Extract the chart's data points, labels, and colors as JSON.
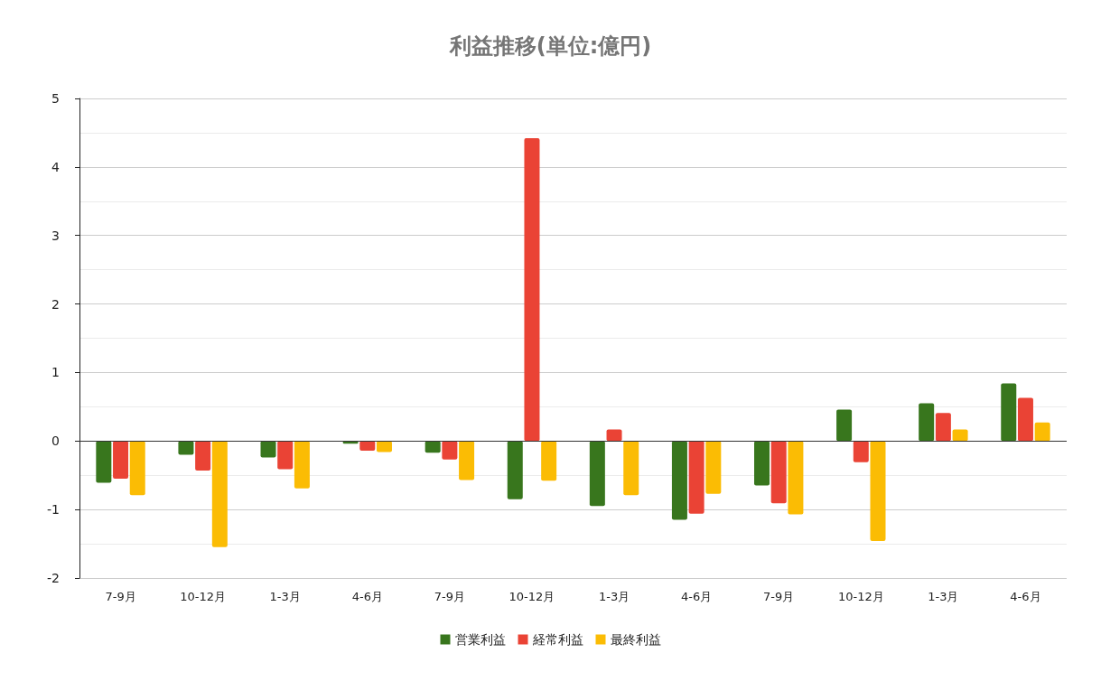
{
  "chart_data": {
    "type": "bar",
    "title": "利益推移(単位:億円)",
    "categories": [
      "7-9月",
      "10-12月",
      "1-3月",
      "4-6月",
      "7-9月",
      "10-12月",
      "1-3月",
      "4-6月",
      "7-9月",
      "10-12月",
      "1-3月",
      "4-6月"
    ],
    "series": [
      {
        "name": "営業利益",
        "color": "#38761d",
        "values": [
          -0.61,
          -0.2,
          -0.24,
          -0.04,
          -0.17,
          -0.85,
          -0.95,
          -1.15,
          -0.65,
          0.46,
          0.55,
          0.84
        ]
      },
      {
        "name": "経常利益",
        "color": "#ea4335",
        "values": [
          -0.55,
          -0.43,
          -0.41,
          -0.14,
          -0.27,
          4.42,
          0.17,
          -1.06,
          -0.91,
          -0.31,
          0.41,
          0.63
        ]
      },
      {
        "name": "最終利益",
        "color": "#fbbc04",
        "values": [
          -0.79,
          -1.55,
          -0.69,
          -0.16,
          -0.57,
          -0.58,
          -0.79,
          -0.77,
          -1.07,
          -1.46,
          0.17,
          0.27
        ]
      }
    ],
    "ylim": [
      -2,
      5
    ],
    "yticks": [
      -2,
      -1,
      0,
      1,
      2,
      3,
      4,
      5
    ],
    "grid": "y",
    "legend": "bottom"
  }
}
